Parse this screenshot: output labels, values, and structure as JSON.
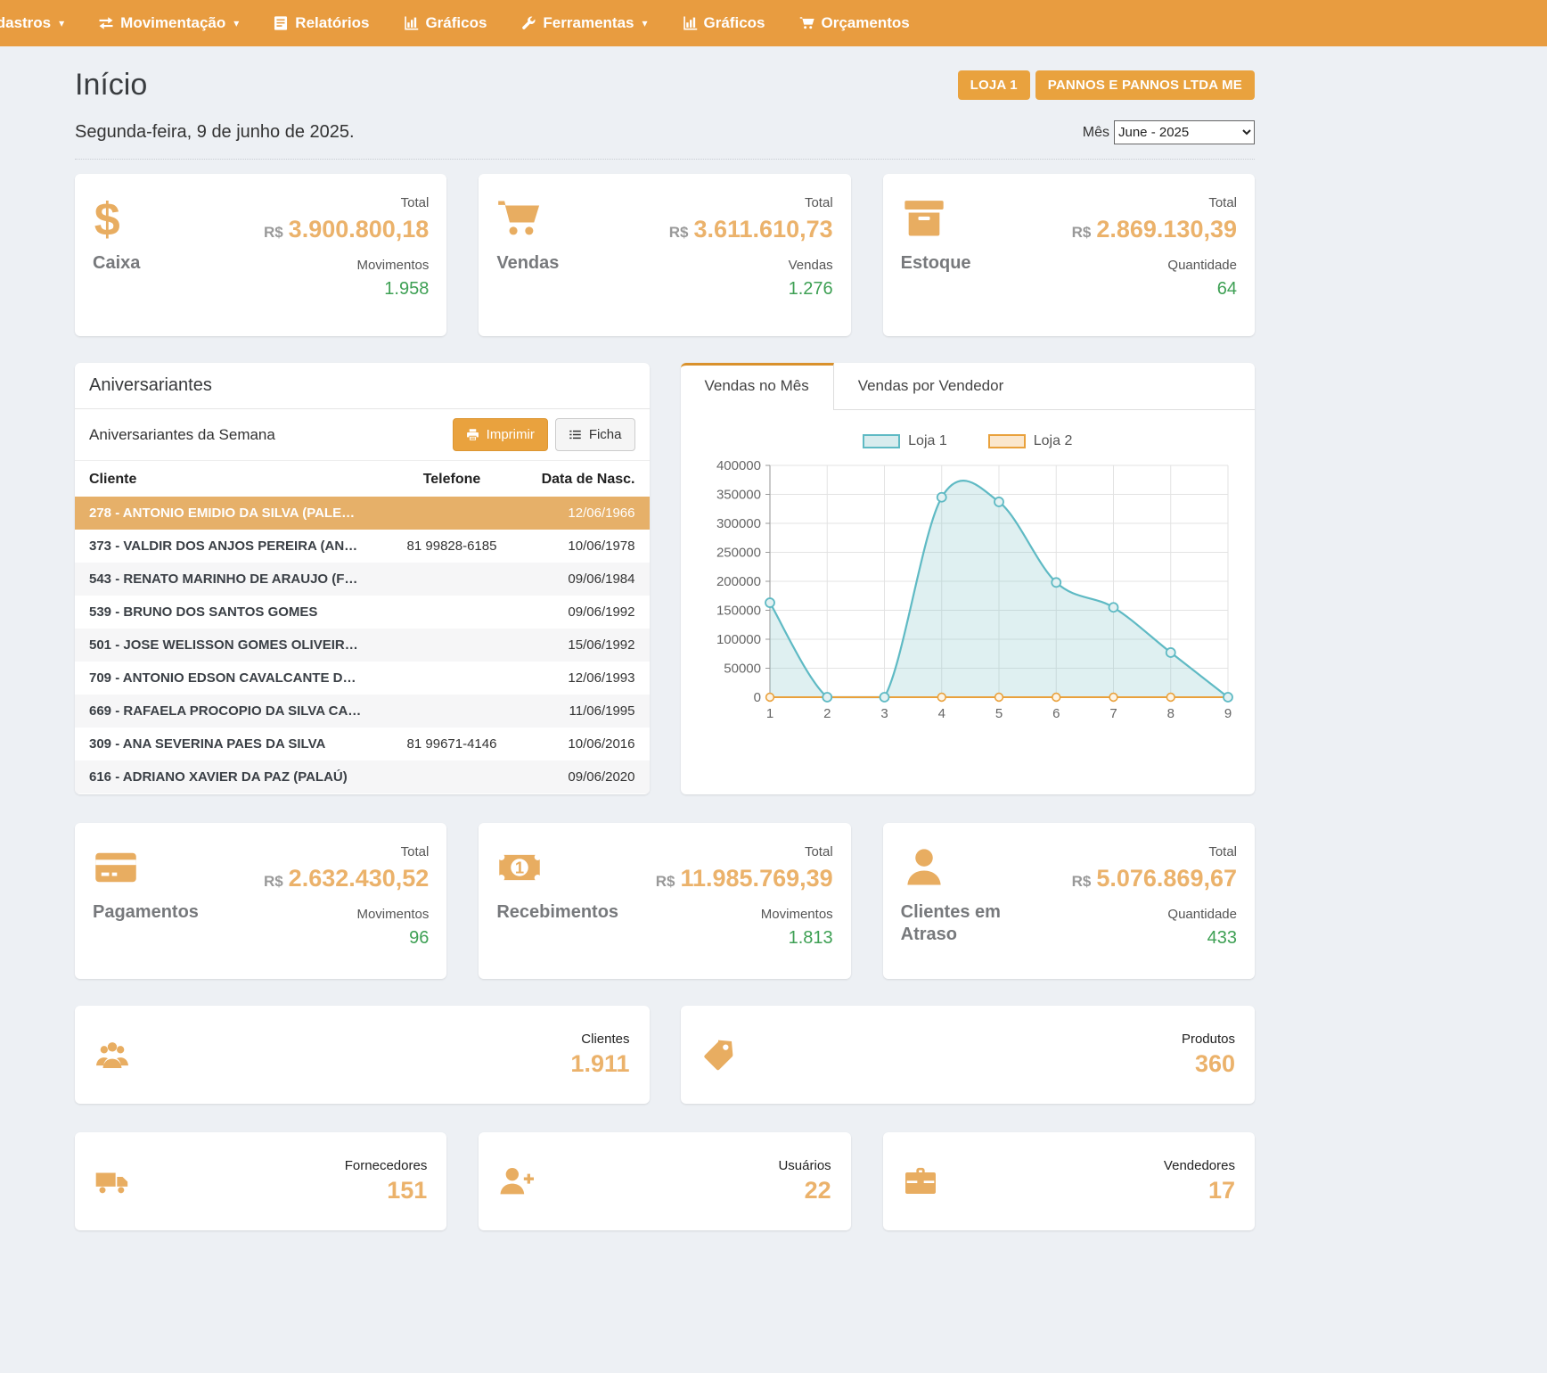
{
  "nav": {
    "items": [
      {
        "label": "Cadastros",
        "icon": "none",
        "caret": true
      },
      {
        "label": "Movimentação",
        "icon": "swap-icon",
        "caret": true
      },
      {
        "label": "Relatórios",
        "icon": "report-icon",
        "caret": false
      },
      {
        "label": "Gráficos",
        "icon": "chart-icon",
        "caret": false
      },
      {
        "label": "Ferramentas",
        "icon": "wrench-icon",
        "caret": true
      },
      {
        "label": "Gráficos",
        "icon": "chart-icon",
        "caret": false
      },
      {
        "label": "Orçamentos",
        "icon": "cart-icon",
        "caret": false
      }
    ]
  },
  "header": {
    "title": "Início",
    "store_badge": "LOJA 1",
    "company_badge": "PANNOS E PANNOS LTDA ME",
    "date": "Segunda-feira, 9 de junho de 2025.",
    "month_label": "Mês",
    "month_value": "June - 2025"
  },
  "stat_cards": [
    {
      "id": "caixa",
      "label": "Caixa",
      "icon": "dollar-icon",
      "total_label": "Total",
      "currency": "R$",
      "total": "3.900.800,18",
      "count_label": "Movimentos",
      "count": "1.958"
    },
    {
      "id": "vendas",
      "label": "Vendas",
      "icon": "cart-big-icon",
      "total_label": "Total",
      "currency": "R$",
      "total": "3.611.610,73",
      "count_label": "Vendas",
      "count": "1.276"
    },
    {
      "id": "estoque",
      "label": "Estoque",
      "icon": "box-icon",
      "total_label": "Total",
      "currency": "R$",
      "total": "2.869.130,39",
      "count_label": "Quantidade",
      "count": "64"
    },
    {
      "id": "pagamentos",
      "label": "Pagamentos",
      "icon": "credit-card-icon",
      "total_label": "Total",
      "currency": "R$",
      "total": "2.632.430,52",
      "count_label": "Movimentos",
      "count": "96"
    },
    {
      "id": "recebimentos",
      "label": "Recebimentos",
      "icon": "banknote-icon",
      "total_label": "Total",
      "currency": "R$",
      "total": "11.985.769,39",
      "count_label": "Movimentos",
      "count": "1.813"
    },
    {
      "id": "clientes-atraso",
      "label": "Clientes em Atraso",
      "icon": "user-icon",
      "total_label": "Total",
      "currency": "R$",
      "total": "5.076.869,67",
      "count_label": "Quantidade",
      "count": "433"
    }
  ],
  "birthdays": {
    "title": "Aniversariantes",
    "subtitle": "Aniversariantes da Semana",
    "print_button": "Imprimir",
    "ficha_button": "Ficha",
    "columns": [
      "Cliente",
      "Telefone",
      "Data de Nasc."
    ],
    "rows": [
      {
        "client": "278 - ANTONIO EMIDIO DA SILVA (PALE…",
        "phone": "",
        "birth": "12/06/1966",
        "highlighted": true
      },
      {
        "client": "373 - VALDIR DOS ANJOS PEREIRA (AN…",
        "phone": "81 99828-6185",
        "birth": "10/06/1978",
        "highlighted": false
      },
      {
        "client": "543 - RENATO MARINHO DE ARAUJO (F…",
        "phone": "",
        "birth": "09/06/1984",
        "highlighted": false
      },
      {
        "client": "539 - BRUNO DOS SANTOS GOMES",
        "phone": "",
        "birth": "09/06/1992",
        "highlighted": false
      },
      {
        "client": "501 - JOSE WELISSON GOMES OLIVEIR…",
        "phone": "",
        "birth": "15/06/1992",
        "highlighted": false
      },
      {
        "client": "709 - ANTONIO EDSON CAVALCANTE D…",
        "phone": "",
        "birth": "12/06/1993",
        "highlighted": false
      },
      {
        "client": "669 - RAFAELA PROCOPIO DA SILVA CA…",
        "phone": "",
        "birth": "11/06/1995",
        "highlighted": false
      },
      {
        "client": "309 - ANA SEVERINA PAES DA SILVA",
        "phone": "81 99671-4146",
        "birth": "10/06/2016",
        "highlighted": false
      },
      {
        "client": "616 - ADRIANO XAVIER DA PAZ (PALAÚ)",
        "phone": "",
        "birth": "09/06/2020",
        "highlighted": false
      }
    ]
  },
  "chart_tabs": {
    "active": "Vendas no Mês",
    "inactive": "Vendas por Vendedor"
  },
  "chart_data": {
    "type": "area",
    "title": "Vendas no Mês",
    "x": [
      1,
      2,
      3,
      4,
      5,
      6,
      7,
      8,
      9
    ],
    "series": [
      {
        "name": "Loja 1",
        "values": [
          163000,
          0,
          0,
          345000,
          337000,
          198000,
          155000,
          77000,
          0
        ],
        "line_color": "#5fbac4",
        "fill_color": "rgba(127,196,201,0.25)",
        "legend_fill": "#d8ecee"
      },
      {
        "name": "Loja 2",
        "values": [
          0,
          0,
          0,
          0,
          0,
          0,
          0,
          0,
          0
        ],
        "line_color": "#e9a13c",
        "fill_color": "rgba(233,161,60,0.12)",
        "legend_fill": "#fbe7cd"
      }
    ],
    "ylim": [
      0,
      400000
    ],
    "y_ticks": [
      0,
      50000,
      100000,
      150000,
      200000,
      250000,
      300000,
      350000,
      400000
    ],
    "grid": true,
    "legend_position": "top"
  },
  "wide_cards": [
    {
      "id": "clientes",
      "label": "Clientes",
      "value": "1.911",
      "icon": "group-icon"
    },
    {
      "id": "produtos",
      "label": "Produtos",
      "value": "360",
      "icon": "tag-icon"
    }
  ],
  "bottom_cards": [
    {
      "id": "fornecedores",
      "label": "Fornecedores",
      "value": "151",
      "icon": "truck-icon"
    },
    {
      "id": "usuarios",
      "label": "Usuários",
      "value": "22",
      "icon": "user-plus-icon"
    },
    {
      "id": "vendedores",
      "label": "Vendedores",
      "value": "17",
      "icon": "briefcase-icon"
    }
  ],
  "colors": {
    "accent": "#e89c40",
    "badge_orange": "#e9a23e",
    "value_orange": "#ebb26b",
    "icon_orange": "#e8ad61",
    "count_green": "#3ea054",
    "highlight_row": "#e6b069",
    "loja1_line": "#5fbac4",
    "loja2_line": "#e9a13c",
    "page_background": "#edf0f4"
  }
}
